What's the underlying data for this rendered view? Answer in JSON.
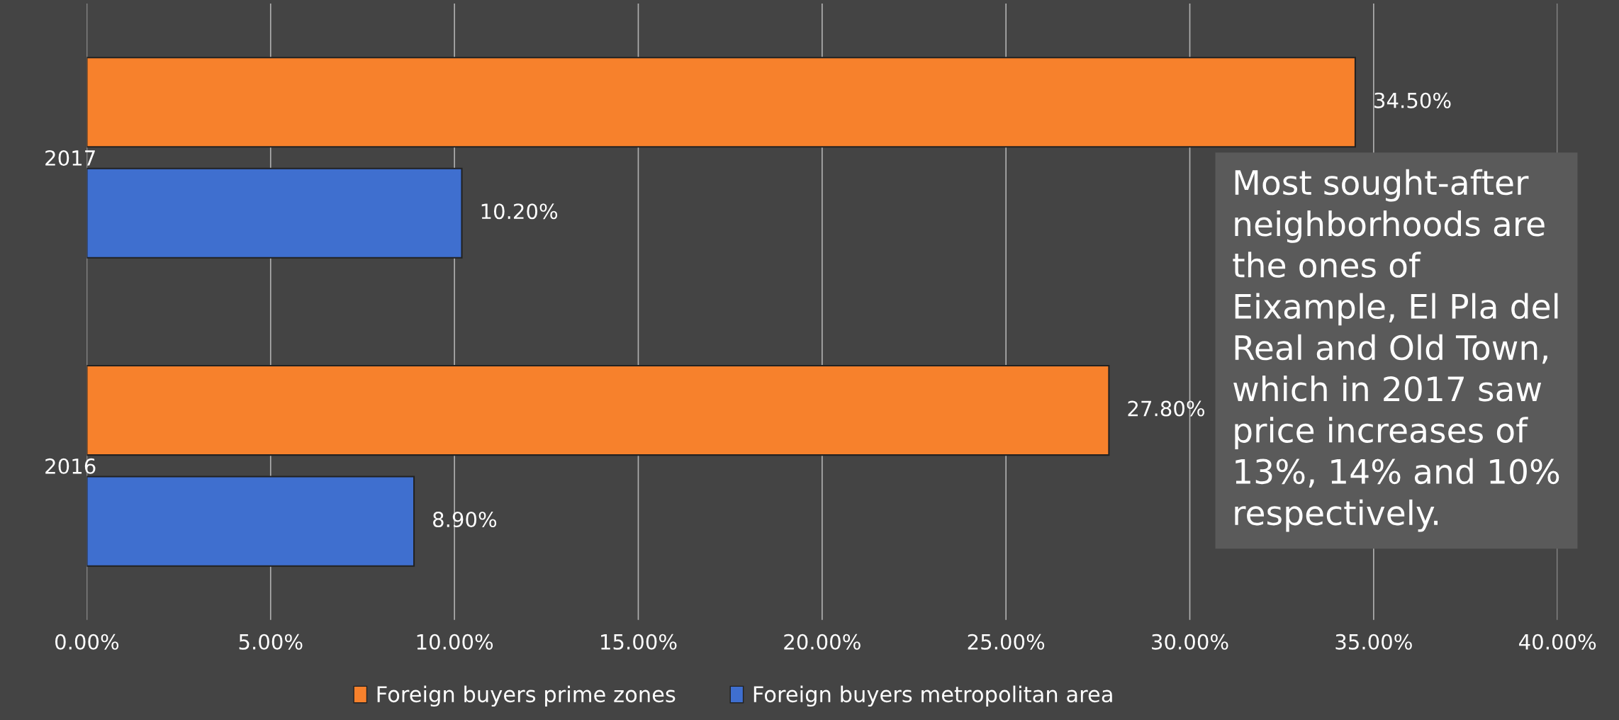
{
  "chart_data": {
    "type": "bar",
    "orientation": "horizontal",
    "categories": [
      "2017",
      "2016"
    ],
    "series": [
      {
        "name": "Foreign buyers prime zones",
        "color": "#f7812c",
        "values": [
          34.5,
          27.8
        ]
      },
      {
        "name": "Foreign buyers metropolitan area",
        "color": "#3f6fcf",
        "values": [
          10.2,
          8.9
        ]
      }
    ],
    "xlim": [
      0,
      40
    ],
    "xticks": [
      {
        "value": 0,
        "label": "0.00%"
      },
      {
        "value": 5,
        "label": "5.00%"
      },
      {
        "value": 10,
        "label": "10.00%"
      },
      {
        "value": 15,
        "label": "15.00%"
      },
      {
        "value": 20,
        "label": "20.00%"
      },
      {
        "value": 25,
        "label": "25.00%"
      },
      {
        "value": 30,
        "label": "30.00%"
      },
      {
        "value": 35,
        "label": "35.00%"
      },
      {
        "value": 40,
        "label": "40.00%"
      }
    ],
    "value_labels": [
      [
        "34.50%",
        "27.80%"
      ],
      [
        "10.20%",
        "8.90%"
      ]
    ],
    "grid": "x",
    "legend": "bottom",
    "annotations": [
      "Most sought-after neighborhoods are the ones of Eixample, El Pla del Real and Old Town, which in 2017 saw price increases of 13%, 14% and 10% respectively."
    ]
  }
}
